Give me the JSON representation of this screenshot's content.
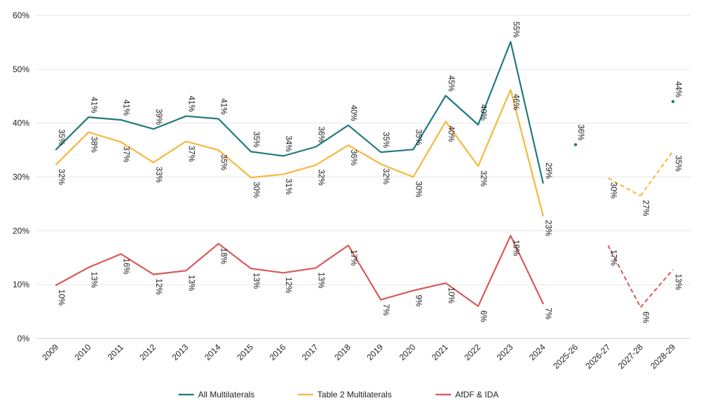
{
  "chart_data": {
    "type": "line",
    "title": "",
    "xlabel": "",
    "ylabel": "",
    "ylim": [
      0,
      60
    ],
    "y_ticks": [
      "0%",
      "10%",
      "20%",
      "30%",
      "40%",
      "50%",
      "60%"
    ],
    "y_tick_values": [
      0,
      10,
      20,
      30,
      40,
      50,
      60
    ],
    "categories": [
      "2009",
      "2010",
      "2011",
      "2012",
      "2013",
      "2014",
      "2015",
      "2016",
      "2017",
      "2018",
      "2019",
      "2020",
      "2021",
      "2022",
      "2023",
      "2024",
      "2025-26",
      "2026-27",
      "2027-28",
      "2028-29"
    ],
    "grid": "horizontal",
    "legend_position": "bottom",
    "series": [
      {
        "name": "All Multilaterals",
        "color": "#1f7a7a",
        "values": [
          35.1,
          41.1,
          40.6,
          38.9,
          41.3,
          40.8,
          34.7,
          33.9,
          35.6,
          39.6,
          34.6,
          35.1,
          45.1,
          39.7,
          55.1,
          28.9,
          36,
          null,
          null,
          44
        ],
        "labels": [
          "35%",
          "41%",
          "41%",
          "39%",
          "41%",
          "41%",
          "35%",
          "34%",
          "36%",
          "40%",
          "35%",
          "35%",
          "45%",
          "40%",
          "55%",
          "29%",
          "36%",
          "",
          "",
          "44%"
        ],
        "solid_until": 15,
        "dashed_segments": [],
        "dots": [
          16,
          19
        ]
      },
      {
        "name": "Table 2 Multilaterals",
        "color": "#f5b83c",
        "values": [
          32.3,
          38.3,
          36.5,
          32.7,
          36.6,
          35.0,
          29.9,
          30.5,
          32.2,
          35.9,
          32.4,
          30.0,
          40.3,
          32.0,
          46.2,
          22.8,
          null,
          29.8,
          26.5,
          34.8
        ],
        "labels": [
          "32%",
          "38%",
          "37%",
          "33%",
          "37%",
          "35%",
          "30%",
          "31%",
          "32%",
          "36%",
          "32%",
          "30%",
          "40%",
          "32%",
          "46%",
          "23%",
          "",
          "30%",
          "27%",
          "35%"
        ],
        "solid_until": 15,
        "dashed_segments": [
          [
            17,
            18
          ],
          [
            18,
            19
          ]
        ],
        "dots": []
      },
      {
        "name": "AfDF & IDA",
        "color": "#d9595a",
        "values": [
          9.9,
          13.2,
          15.7,
          11.9,
          12.6,
          17.6,
          13.0,
          12.2,
          13.1,
          17.3,
          7.2,
          8.9,
          10.3,
          6.0,
          19.1,
          6.5,
          null,
          17.3,
          5.8,
          12.8
        ],
        "labels": [
          "10%",
          "13%",
          "16%",
          "12%",
          "13%",
          "18%",
          "13%",
          "12%",
          "13%",
          "17%",
          "7%",
          "9%",
          "10%",
          "6%",
          "19%",
          "7%",
          "",
          "17%",
          "6%",
          "13%"
        ],
        "solid_until": 15,
        "dashed_segments": [
          [
            17,
            18
          ],
          [
            18,
            19
          ]
        ],
        "dots": []
      }
    ]
  }
}
